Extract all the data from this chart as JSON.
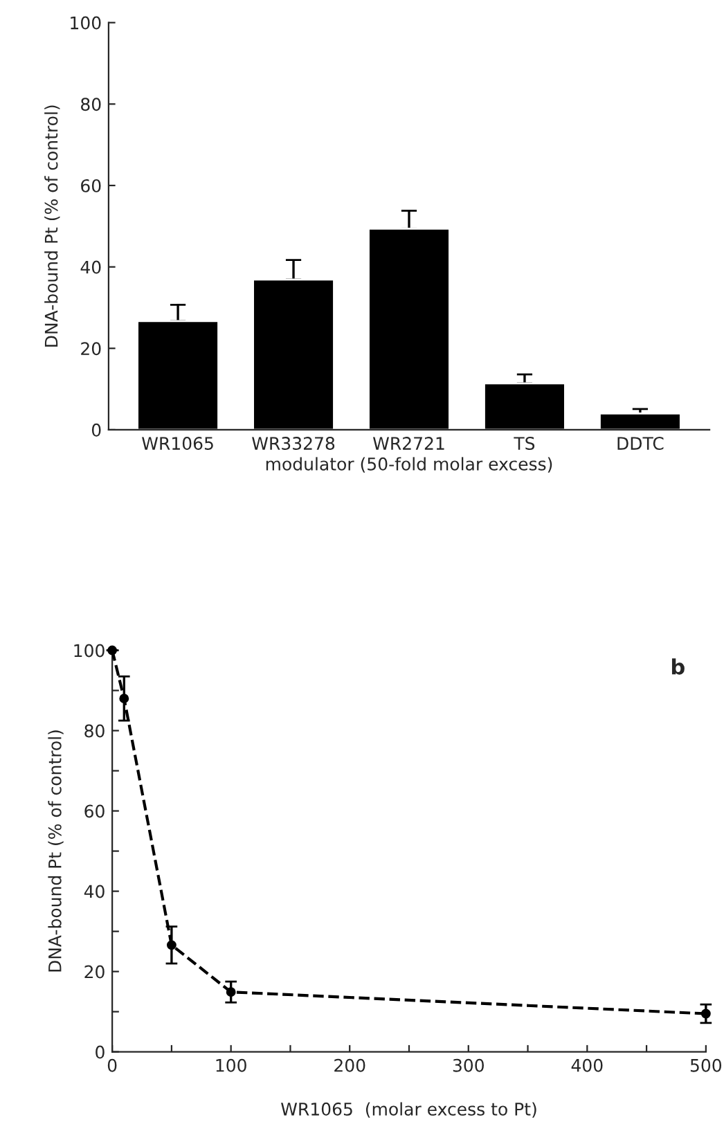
{
  "chart_data": [
    {
      "type": "bar",
      "categories": [
        "WR1065",
        "WR33278",
        "WR2721",
        "TS",
        "DDTC"
      ],
      "xlabel": "modulator (50-fold molar excess)",
      "ylabel": "DNA-bound Pt (% of control)",
      "ylim": [
        0,
        100
      ],
      "yticks": [
        0,
        20,
        40,
        60,
        80,
        100
      ],
      "series": [
        {
          "color": "#000000",
          "values": [
            26.7,
            36.9,
            49.4,
            11.4,
            4.0
          ],
          "errors": [
            [
              26.7,
              30.7
            ],
            [
              36.9,
              41.7
            ],
            [
              49.4,
              53.8
            ],
            [
              11.4,
              13.6
            ],
            [
              4.0,
              5.1
            ]
          ]
        }
      ],
      "grid": false,
      "legend": false
    },
    {
      "type": "line",
      "xlabel": "WR1065  (molar excess to Pt)",
      "ylabel": "DNA-bound Pt (% of control)",
      "annotations": [
        "b"
      ],
      "xlim": [
        0,
        500
      ],
      "xticks": [
        0,
        {
          "value": 50,
          "label": null
        },
        100,
        {
          "value": 150,
          "label": null
        },
        200,
        {
          "value": 250,
          "label": null
        },
        300,
        {
          "value": 350,
          "label": null
        },
        400,
        {
          "value": 450,
          "label": null
        },
        500
      ],
      "ylim": [
        0,
        100
      ],
      "yticks": [
        0,
        {
          "value": 10,
          "label": null
        },
        20,
        {
          "value": 30,
          "label": null
        },
        40,
        {
          "value": 50,
          "label": null
        },
        60,
        {
          "value": 70,
          "label": null
        },
        80,
        {
          "value": 90,
          "label": null
        },
        100
      ],
      "series": [
        {
          "color": "#000000",
          "x": [
            0,
            10,
            50,
            100,
            500
          ],
          "values": [
            100,
            88.0,
            26.6,
            14.9,
            9.5
          ],
          "errors": [
            null,
            5.5,
            4.6,
            2.6,
            2.3
          ]
        }
      ],
      "marker": "circle",
      "line_style": "dashed",
      "grid": false,
      "legend": false
    }
  ]
}
